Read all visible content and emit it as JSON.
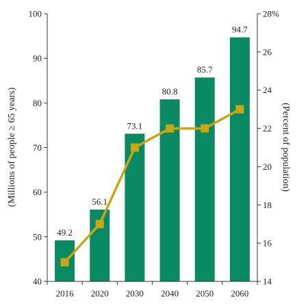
{
  "chart_data": {
    "type": "bar",
    "categories": [
      "2016",
      "2020",
      "2030",
      "2040",
      "2050",
      "2060"
    ],
    "series": [
      {
        "type": "bar",
        "axis": "left",
        "color": "#0a8a63",
        "values": [
          49.2,
          56.1,
          73.1,
          80.8,
          85.7,
          94.7
        ],
        "value_labels": [
          "49.2",
          "56.1",
          "73.1",
          "80.8",
          "85.7",
          "94.7"
        ]
      },
      {
        "type": "line",
        "axis": "right",
        "color": "#c9a714",
        "marker": "square",
        "values": [
          15,
          17,
          21,
          22,
          22,
          23
        ]
      }
    ],
    "ylabel": "(Millions of people ≥ 65 years)",
    "y2label": "(Percent of population)",
    "ylim": [
      40,
      100
    ],
    "yticks": [
      "40",
      "50",
      "60",
      "70",
      "80",
      "90",
      "100"
    ],
    "y2lim": [
      14,
      28
    ],
    "y2ticks": [
      "14",
      "16",
      "18",
      "20",
      "22",
      "24",
      "26",
      "28%"
    ],
    "grid": false,
    "legend": "none"
  }
}
